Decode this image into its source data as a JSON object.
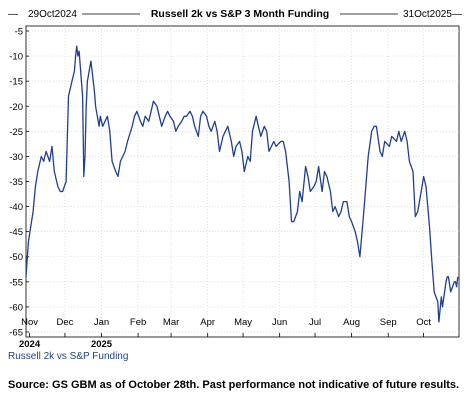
{
  "chart_data": {
    "type": "line",
    "title": "Russell 2k vs S&P 3 Month Funding",
    "date_start_label": "29Oct2024",
    "date_end_label": "31Oct2025",
    "series": [
      {
        "name": "Russell 2k vs S&P Funding",
        "color": "#1f3f8f",
        "points": [
          [
            "2024-10-29",
            -54
          ],
          [
            "2024-10-31",
            -47
          ],
          [
            "2024-11-04",
            -41
          ],
          [
            "2024-11-06",
            -36
          ],
          [
            "2024-11-08",
            -33
          ],
          [
            "2024-11-11",
            -30
          ],
          [
            "2024-11-13",
            -31
          ],
          [
            "2024-11-15",
            -29
          ],
          [
            "2024-11-18",
            -31
          ],
          [
            "2024-11-20",
            -28
          ],
          [
            "2024-11-22",
            -33
          ],
          [
            "2024-11-25",
            -36
          ],
          [
            "2024-11-27",
            -37
          ],
          [
            "2024-11-29",
            -37
          ],
          [
            "2024-12-02",
            -35
          ],
          [
            "2024-12-04",
            -18
          ],
          [
            "2024-12-06",
            -16
          ],
          [
            "2024-12-09",
            -13
          ],
          [
            "2024-12-10",
            -10
          ],
          [
            "2024-12-11",
            -8
          ],
          [
            "2024-12-12",
            -10
          ],
          [
            "2024-12-13",
            -9
          ],
          [
            "2024-12-16",
            -18
          ],
          [
            "2024-12-17",
            -34
          ],
          [
            "2024-12-18",
            -30
          ],
          [
            "2024-12-19",
            -20
          ],
          [
            "2024-12-20",
            -15
          ],
          [
            "2024-12-23",
            -11
          ],
          [
            "2024-12-24",
            -13
          ],
          [
            "2024-12-26",
            -17
          ],
          [
            "2024-12-27",
            -20
          ],
          [
            "2024-12-30",
            -24
          ],
          [
            "2024-12-31",
            -22
          ],
          [
            "2025-01-02",
            -24
          ],
          [
            "2025-01-06",
            -22
          ],
          [
            "2025-01-08",
            -25
          ],
          [
            "2025-01-10",
            -31
          ],
          [
            "2025-01-13",
            -33
          ],
          [
            "2025-01-15",
            -34
          ],
          [
            "2025-01-17",
            -31
          ],
          [
            "2025-01-21",
            -29
          ],
          [
            "2025-01-23",
            -27
          ],
          [
            "2025-01-27",
            -24
          ],
          [
            "2025-01-29",
            -22
          ],
          [
            "2025-01-31",
            -21
          ],
          [
            "2025-02-03",
            -23
          ],
          [
            "2025-02-05",
            -24
          ],
          [
            "2025-02-07",
            -22
          ],
          [
            "2025-02-10",
            -23
          ],
          [
            "2025-02-12",
            -21
          ],
          [
            "2025-02-14",
            -19
          ],
          [
            "2025-02-17",
            -20
          ],
          [
            "2025-02-19",
            -22
          ],
          [
            "2025-02-21",
            -24
          ],
          [
            "2025-02-24",
            -22
          ],
          [
            "2025-02-26",
            -21
          ],
          [
            "2025-02-28",
            -22
          ],
          [
            "2025-03-03",
            -23
          ],
          [
            "2025-03-05",
            -25
          ],
          [
            "2025-03-07",
            -24
          ],
          [
            "2025-03-10",
            -23
          ],
          [
            "2025-03-12",
            -22
          ],
          [
            "2025-03-14",
            -22
          ],
          [
            "2025-03-17",
            -21
          ],
          [
            "2025-03-19",
            -22
          ],
          [
            "2025-03-21",
            -24
          ],
          [
            "2025-03-24",
            -26
          ],
          [
            "2025-03-26",
            -22
          ],
          [
            "2025-03-28",
            -21
          ],
          [
            "2025-03-31",
            -22
          ],
          [
            "2025-04-02",
            -24
          ],
          [
            "2025-04-04",
            -25
          ],
          [
            "2025-04-07",
            -23
          ],
          [
            "2025-04-09",
            -25
          ],
          [
            "2025-04-11",
            -29
          ],
          [
            "2025-04-14",
            -26
          ],
          [
            "2025-04-16",
            -25
          ],
          [
            "2025-04-18",
            -24
          ],
          [
            "2025-04-21",
            -27
          ],
          [
            "2025-04-23",
            -30
          ],
          [
            "2025-04-25",
            -28
          ],
          [
            "2025-04-28",
            -27
          ],
          [
            "2025-04-30",
            -29
          ],
          [
            "2025-05-02",
            -33
          ],
          [
            "2025-05-05",
            -30
          ],
          [
            "2025-05-07",
            -31
          ],
          [
            "2025-05-09",
            -25
          ],
          [
            "2025-05-12",
            -22
          ],
          [
            "2025-05-14",
            -24
          ],
          [
            "2025-05-16",
            -26
          ],
          [
            "2025-05-19",
            -24
          ],
          [
            "2025-05-21",
            -25
          ],
          [
            "2025-05-23",
            -29
          ],
          [
            "2025-05-27",
            -27
          ],
          [
            "2025-05-29",
            -28
          ],
          [
            "2025-06-02",
            -27
          ],
          [
            "2025-06-04",
            -27
          ],
          [
            "2025-06-06",
            -29
          ],
          [
            "2025-06-09",
            -35
          ],
          [
            "2025-06-11",
            -43
          ],
          [
            "2025-06-13",
            -43
          ],
          [
            "2025-06-16",
            -41
          ],
          [
            "2025-06-18",
            -37
          ],
          [
            "2025-06-20",
            -39
          ],
          [
            "2025-06-23",
            -32
          ],
          [
            "2025-06-25",
            -34
          ],
          [
            "2025-06-27",
            -37
          ],
          [
            "2025-06-30",
            -36
          ],
          [
            "2025-07-02",
            -35
          ],
          [
            "2025-07-04",
            -32
          ],
          [
            "2025-07-07",
            -37
          ],
          [
            "2025-07-09",
            -33
          ],
          [
            "2025-07-11",
            -34
          ],
          [
            "2025-07-14",
            -37
          ],
          [
            "2025-07-16",
            -41
          ],
          [
            "2025-07-18",
            -40
          ],
          [
            "2025-07-21",
            -42
          ],
          [
            "2025-07-23",
            -41
          ],
          [
            "2025-07-25",
            -39
          ],
          [
            "2025-07-28",
            -39
          ],
          [
            "2025-07-30",
            -42
          ],
          [
            "2025-08-01",
            -43
          ],
          [
            "2025-08-04",
            -45
          ],
          [
            "2025-08-06",
            -47
          ],
          [
            "2025-08-08",
            -50
          ],
          [
            "2025-08-11",
            -42
          ],
          [
            "2025-08-13",
            -36
          ],
          [
            "2025-08-15",
            -30
          ],
          [
            "2025-08-18",
            -25
          ],
          [
            "2025-08-20",
            -24
          ],
          [
            "2025-08-22",
            -24
          ],
          [
            "2025-08-25",
            -29
          ],
          [
            "2025-08-27",
            -30
          ],
          [
            "2025-08-29",
            -27
          ],
          [
            "2025-09-02",
            -28
          ],
          [
            "2025-09-04",
            -26
          ],
          [
            "2025-09-08",
            -27
          ],
          [
            "2025-09-10",
            -25
          ],
          [
            "2025-09-12",
            -27
          ],
          [
            "2025-09-15",
            -25
          ],
          [
            "2025-09-17",
            -27
          ],
          [
            "2025-09-19",
            -31
          ],
          [
            "2025-09-22",
            -33
          ],
          [
            "2025-09-24",
            -42
          ],
          [
            "2025-09-26",
            -41
          ],
          [
            "2025-09-29",
            -37
          ],
          [
            "2025-10-01",
            -34
          ],
          [
            "2025-10-03",
            -36
          ],
          [
            "2025-10-06",
            -44
          ],
          [
            "2025-10-08",
            -51
          ],
          [
            "2025-10-10",
            -57
          ],
          [
            "2025-10-13",
            -59
          ],
          [
            "2025-10-14",
            -63
          ],
          [
            "2025-10-16",
            -58
          ],
          [
            "2025-10-17",
            -60
          ],
          [
            "2025-10-20",
            -55
          ],
          [
            "2025-10-21",
            -54
          ],
          [
            "2025-10-22",
            -54
          ],
          [
            "2025-10-24",
            -57
          ],
          [
            "2025-10-27",
            -55
          ],
          [
            "2025-10-28",
            -55
          ],
          [
            "2025-10-29",
            -56
          ],
          [
            "2025-10-30",
            -54
          ]
        ]
      }
    ],
    "y_ticks": [
      -5,
      -10,
      -15,
      -20,
      -25,
      -30,
      -35,
      -40,
      -45,
      -50,
      -55,
      -60,
      -65
    ],
    "ylim": [
      -66,
      -4
    ],
    "xlim": [
      "2024-10-29",
      "2025-10-31"
    ],
    "x_ticks": [
      {
        "label": "Nov",
        "date": "2024-11-01"
      },
      {
        "label": "Dec",
        "date": "2024-12-01"
      },
      {
        "label": "Jan",
        "date": "2025-01-01"
      },
      {
        "label": "Feb",
        "date": "2025-02-01"
      },
      {
        "label": "Mar",
        "date": "2025-03-01"
      },
      {
        "label": "Apr",
        "date": "2025-04-01"
      },
      {
        "label": "May",
        "date": "2025-05-01"
      },
      {
        "label": "Jun",
        "date": "2025-06-01"
      },
      {
        "label": "Jul",
        "date": "2025-07-01"
      },
      {
        "label": "Aug",
        "date": "2025-08-01"
      },
      {
        "label": "Sep",
        "date": "2025-09-01"
      },
      {
        "label": "Oct",
        "date": "2025-10-01"
      }
    ],
    "year_labels": [
      {
        "label": "2024",
        "date": "2024-11-01"
      },
      {
        "label": "2025",
        "date": "2025-01-01"
      }
    ],
    "grid": true,
    "legend_position": "bottom-left",
    "legend_label": "Russell 2k vs S&P Funding"
  },
  "source_note": "Source: GS GBM as of October 28th. Past performance not indicative of future results."
}
